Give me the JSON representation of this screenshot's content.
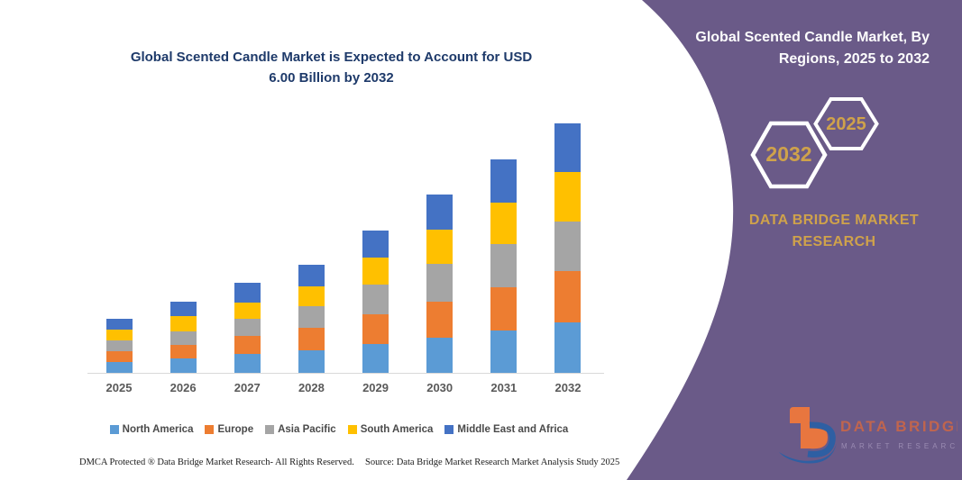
{
  "colors": {
    "purple_panel": "#6a5a88",
    "gold": "#cfa24b",
    "title_navy": "#1e3a6a",
    "axis_line": "#d9d9d9",
    "logo_orange": "#e8763f",
    "logo_blue": "#2e5fa3"
  },
  "left_panel": {
    "title_line1": "Global Scented Candle Market is Expected to Account for USD",
    "title_line2": "6.00 Billion by 2032",
    "footer_dmca": "DMCA Protected ® Data Bridge Market Research-  All Rights Reserved.",
    "footer_source": "Source: Data Bridge Market Research  Market Analysis Study 2025"
  },
  "right_panel": {
    "title_line1": "Global Scented Candle Market, By",
    "title_line2": "Regions, 2025 to 2032",
    "hexagon_back_label": "2032",
    "hexagon_front_label": "2025",
    "brand_line1": "DATA BRIDGE MARKET",
    "brand_line2": "RESEARCH",
    "logo_name": "DATA BRIDGE",
    "logo_subtitle": "MARKET RESEARCH"
  },
  "chart_data": {
    "type": "bar",
    "stacked": true,
    "title": "Global Scented Candle Market is Expected to Account for USD 6.00 Billion by 2032",
    "unit": "USD Billion",
    "categories": [
      "2025",
      "2026",
      "2027",
      "2028",
      "2029",
      "2030",
      "2031",
      "2032"
    ],
    "series": [
      {
        "name": "North America",
        "color": "#5B9BD5",
        "values": [
          0.27,
          0.35,
          0.45,
          0.54,
          0.69,
          0.84,
          1.02,
          1.21
        ]
      },
      {
        "name": "Europe",
        "color": "#ED7D31",
        "values": [
          0.26,
          0.32,
          0.43,
          0.54,
          0.71,
          0.87,
          1.04,
          1.23
        ]
      },
      {
        "name": "Asia Pacific",
        "color": "#A5A5A5",
        "values": [
          0.26,
          0.33,
          0.43,
          0.52,
          0.72,
          0.91,
          1.04,
          1.19
        ]
      },
      {
        "name": "South America",
        "color": "#FFC000",
        "values": [
          0.25,
          0.37,
          0.39,
          0.48,
          0.65,
          0.82,
          1.0,
          1.19
        ]
      },
      {
        "name": "Middle East and Africa",
        "color": "#4472C4",
        "values": [
          0.26,
          0.35,
          0.46,
          0.52,
          0.65,
          0.85,
          1.04,
          1.18
        ]
      }
    ],
    "totals": [
      1.3,
      1.72,
      2.16,
      2.6,
      3.42,
      4.29,
      5.14,
      6.0
    ],
    "ylim": [
      0,
      6
    ],
    "gridlines": false,
    "legend_position": "bottom",
    "legend_order": [
      "North America",
      "Europe",
      "Asia Pacific",
      "South America",
      "Middle East and Africa"
    ]
  }
}
